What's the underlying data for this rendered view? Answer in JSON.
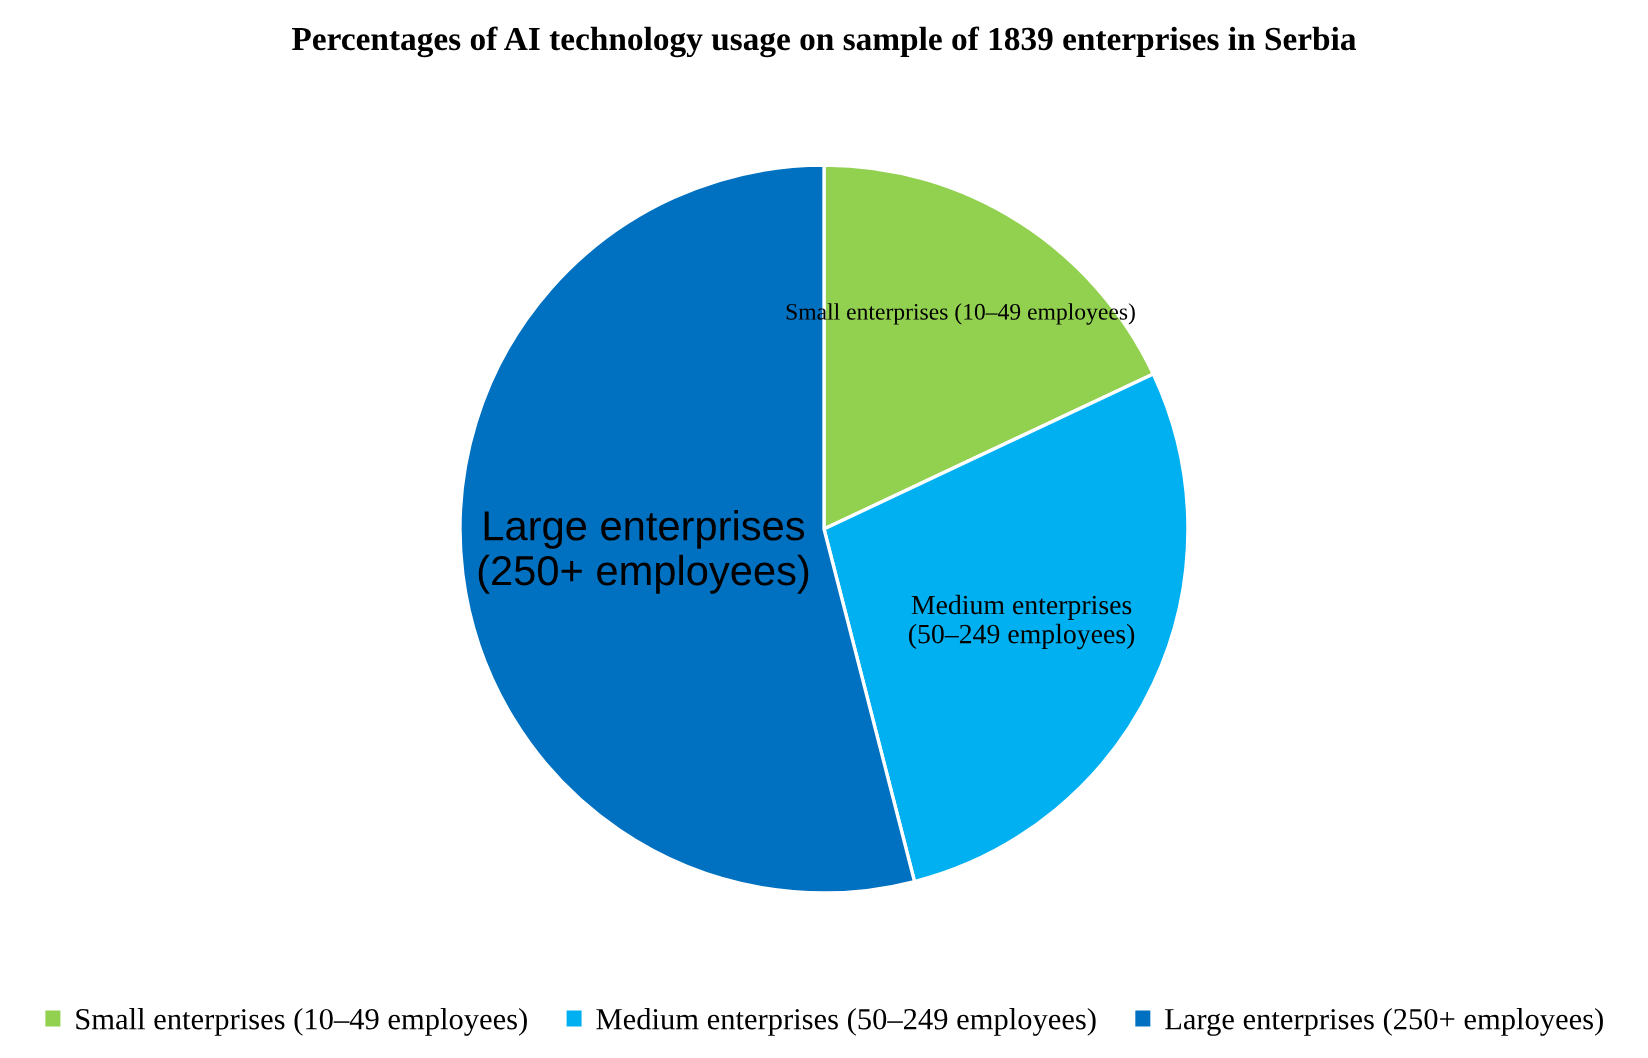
{
  "chart_data": {
    "type": "pie",
    "title": "Percentages of AI technology usage on sample of 1839 enterprises in Serbia",
    "categories": [
      "Small enterprises (10–49 employees)",
      "Medium enterprises (50–249 employees)",
      "Large enterprises (250+ employees)"
    ],
    "annotations": [
      "Small enterprises (10–49 employees)",
      "Medium enterprises\n(50–249 employees)",
      "Large enterprises\n(250+ employees)"
    ],
    "values": [
      18,
      28,
      54
    ],
    "colors": [
      "#92d050",
      "#00b0f0",
      "#0070c0"
    ],
    "legend": "bottom"
  }
}
